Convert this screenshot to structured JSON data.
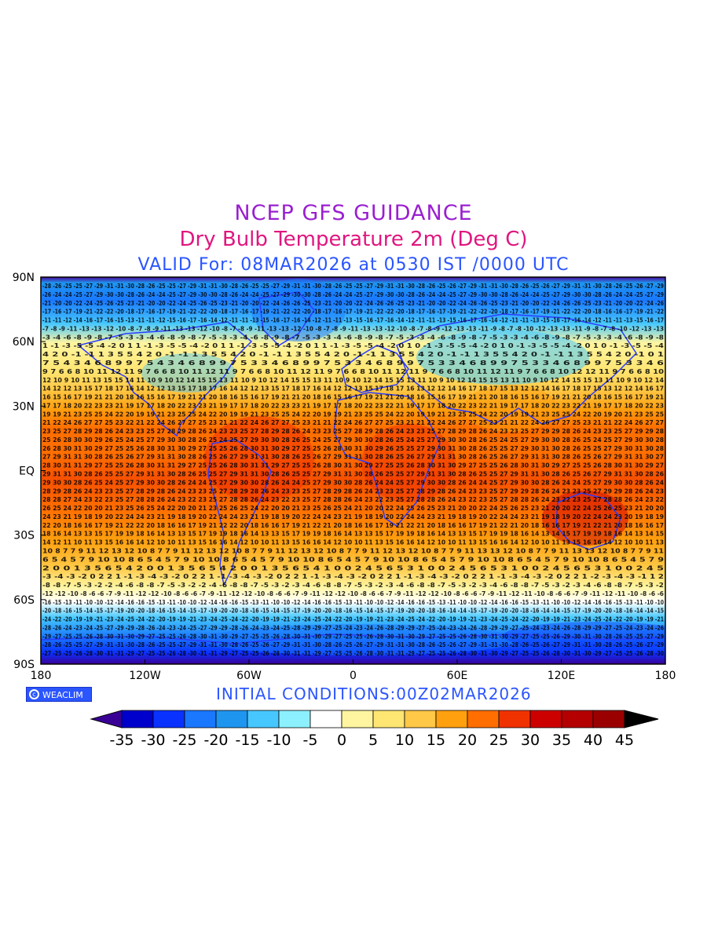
{
  "title": {
    "line1": "NCEP GFS GUIDANCE",
    "line2": "Dry Bulb Temperature 2m (Deg C)",
    "line3": "VALID For: 08MAR2026 at 0530 IST /0000 UTC"
  },
  "map": {
    "lat_labels": [
      "90N",
      "60N",
      "30N",
      "EQ",
      "30S",
      "60S",
      "90S"
    ],
    "lon_labels": [
      "180",
      "120W",
      "60W",
      "0",
      "60E",
      "120E",
      "180"
    ],
    "colors": {
      "frame": "#000000",
      "coastline": "#2b3bff",
      "value_text": "#000000"
    }
  },
  "footer": {
    "logo_text": "WEACLIM",
    "initial_conditions": "INITIAL CONDITIONS:00Z02MAR2026"
  },
  "colorbar": {
    "tick_labels": [
      "-35",
      "-30",
      "-25",
      "-20",
      "-15",
      "-10",
      "-5",
      "0",
      "5",
      "10",
      "15",
      "20",
      "25",
      "30",
      "35",
      "40",
      "45"
    ],
    "colors": [
      "#3a0096",
      "#0000cd",
      "#0a32ff",
      "#1a78ff",
      "#1e96f0",
      "#46c8ff",
      "#8cf0ff",
      "#ffffff",
      "#fff5a0",
      "#ffe673",
      "#ffc846",
      "#ffa00f",
      "#ff6e00",
      "#f03200",
      "#cd0000",
      "#b40000",
      "#9b0000",
      "#000000"
    ]
  }
}
